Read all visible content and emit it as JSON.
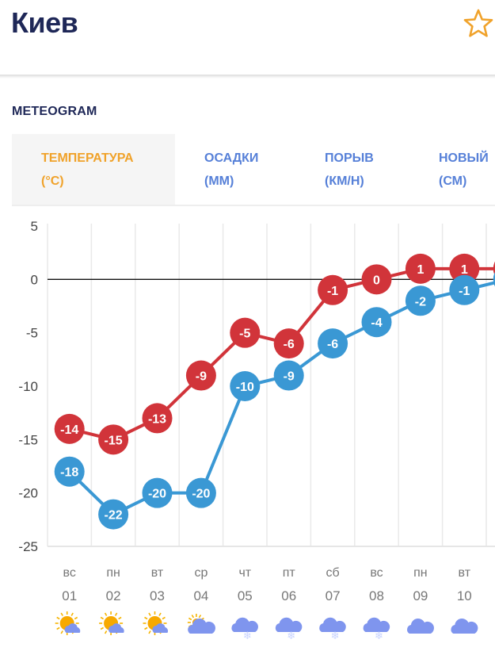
{
  "header": {
    "city": "Киев",
    "favorite_icon": "star-outline-icon",
    "accent": "#f0a22a"
  },
  "section": {
    "title": "METEOGRAM"
  },
  "tabs": [
    {
      "line1": "ТЕМПЕРАТУРА",
      "line2": "(°C)",
      "active": true
    },
    {
      "line1": "ОСАДКИ",
      "line2": "(ММ)",
      "active": false
    },
    {
      "line1": "ПОРЫВ",
      "line2": "(КМ/Н)",
      "active": false
    },
    {
      "line1": "НОВЫЙ",
      "line2": "(СМ)",
      "active": false
    }
  ],
  "chart_data": {
    "type": "line",
    "title": "",
    "xlabel": "",
    "ylabel": "",
    "ylim": [
      -25,
      5
    ],
    "yticks": [
      5,
      0,
      -5,
      -10,
      -15,
      -20,
      -25
    ],
    "grid": true,
    "weekdays": [
      "вс",
      "пн",
      "вт",
      "ср",
      "чт",
      "пт",
      "сб",
      "вс",
      "пн",
      "вт",
      ""
    ],
    "categories": [
      "01",
      "02",
      "03",
      "04",
      "05",
      "06",
      "07",
      "08",
      "09",
      "10",
      ""
    ],
    "weather_icons": [
      "sun-cloud",
      "sun-cloud",
      "sun-cloud",
      "partly-cloudy",
      "snow",
      "snow",
      "snow",
      "snow",
      "cloud",
      "cloud",
      ""
    ],
    "series": [
      {
        "name": "max",
        "color": "#d1343a",
        "values": [
          -14,
          -15,
          -13,
          -9,
          -5,
          -6,
          -1,
          0,
          1,
          1,
          1
        ]
      },
      {
        "name": "min",
        "color": "#3a98d4",
        "values": [
          -18,
          -22,
          -20,
          -20,
          -10,
          -9,
          -6,
          -4,
          -2,
          -1,
          0
        ]
      }
    ]
  }
}
